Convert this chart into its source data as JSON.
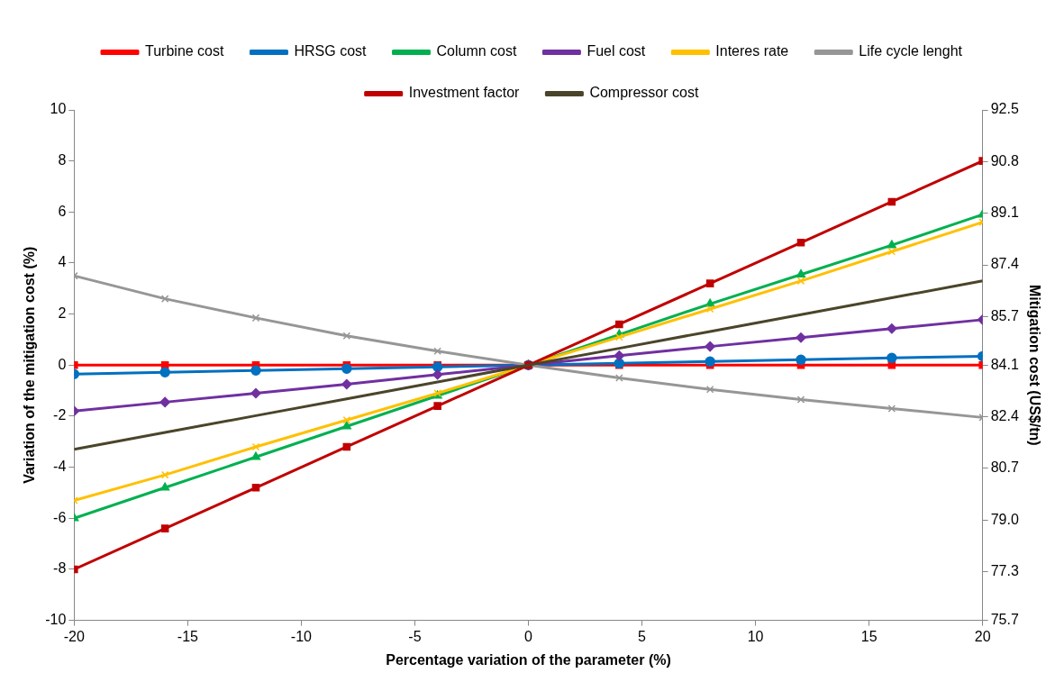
{
  "chart_data": {
    "type": "line",
    "xlabel": "Percentage variation of the parameter (%)",
    "ylabel": "Variation of the mitigation cost (%)",
    "y2label": "Mitigation cost (US$/tn)",
    "x": [
      -20,
      -16,
      -12,
      -8,
      -4,
      0,
      4,
      8,
      12,
      16,
      20
    ],
    "xlim": [
      -20,
      20
    ],
    "xticks": [
      -20,
      -15,
      -10,
      -5,
      0,
      5,
      10,
      15,
      20
    ],
    "ylim": [
      -10,
      10
    ],
    "yticks": [
      -10,
      -8,
      -6,
      -4,
      -2,
      0,
      2,
      4,
      6,
      8,
      10
    ],
    "y2lim": [
      75.7,
      92.5
    ],
    "y2ticks": [
      75.7,
      77.3,
      {
        "value": 79,
        "label": "79.0"
      },
      80.7,
      82.4,
      84.1,
      85.7,
      87.4,
      89.1,
      90.8,
      92.5
    ],
    "grid": false,
    "legend": "top",
    "line_style": "solid",
    "series": [
      {
        "name": "Turbine cost",
        "color": "#ff0000",
        "marker": "square",
        "values": [
          0,
          0,
          0,
          0,
          0,
          0,
          0,
          0,
          0,
          0,
          0
        ]
      },
      {
        "name": "HRSG cost",
        "color": "#0070c0",
        "marker": "circle",
        "values": [
          -0.35,
          -0.28,
          -0.21,
          -0.14,
          -0.07,
          0,
          0.07,
          0.14,
          0.21,
          0.28,
          0.35
        ]
      },
      {
        "name": "Column cost",
        "color": "#00b050",
        "marker": "triangle",
        "values": [
          -6.0,
          -4.8,
          -3.6,
          -2.4,
          -1.2,
          0,
          1.2,
          2.4,
          3.55,
          4.7,
          5.9
        ]
      },
      {
        "name": "Fuel cost",
        "color": "#7030a0",
        "marker": "diamond",
        "values": [
          -1.8,
          -1.45,
          -1.1,
          -0.75,
          -0.37,
          0,
          0.37,
          0.73,
          1.08,
          1.43,
          1.78
        ]
      },
      {
        "name": "Interes rate",
        "color": "#ffc000",
        "marker": "cross",
        "values": [
          -5.3,
          -4.3,
          -3.2,
          -2.15,
          -1.1,
          0,
          1.1,
          2.2,
          3.3,
          4.45,
          5.6
        ]
      },
      {
        "name": "Life cycle lenght",
        "color": "#969696",
        "marker": "cross",
        "values": [
          3.5,
          2.6,
          1.85,
          1.15,
          0.55,
          0,
          -0.5,
          -0.95,
          -1.35,
          -1.7,
          -2.05
        ]
      },
      {
        "name": "Investment factor",
        "color": "#c00000",
        "marker": "square",
        "values": [
          -8,
          -6.4,
          -4.8,
          -3.2,
          -1.6,
          0,
          1.6,
          3.2,
          4.8,
          6.4,
          8
        ]
      },
      {
        "name": "Compressor cost",
        "color": "#4a452a",
        "marker": "none",
        "values": [
          -3.3,
          -2.64,
          -1.98,
          -1.32,
          -0.66,
          0,
          0.66,
          1.32,
          1.98,
          2.64,
          3.3
        ]
      }
    ]
  }
}
